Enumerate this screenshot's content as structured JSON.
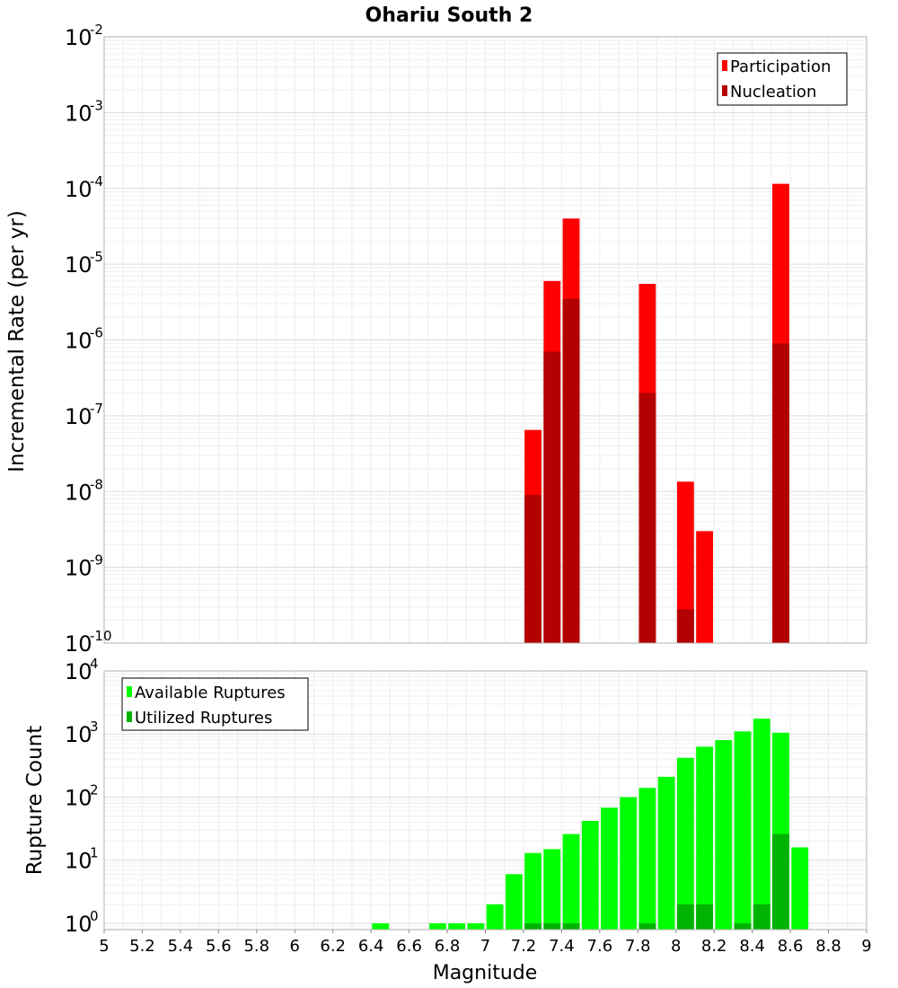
{
  "chart_data": [
    {
      "type": "bar",
      "title": "Ohariu South 2",
      "xlabel": "",
      "ylabel": "Incremental Rate (per yr)",
      "yscale": "log",
      "ylim_exp": [
        -10,
        -2
      ],
      "ytick_base": "10",
      "ytick_exps": [
        "-10",
        "-9",
        "-8",
        "-7",
        "-6",
        "-5",
        "-4",
        "-3",
        "-2"
      ],
      "xlim": [
        5,
        9
      ],
      "bin_width": 0.1,
      "legend_position": "top-right",
      "series": [
        {
          "name": "Participation",
          "color": "#ff0000",
          "points": [
            {
              "x": 7.25,
              "y": 6.5e-08
            },
            {
              "x": 7.35,
              "y": 6e-06
            },
            {
              "x": 7.45,
              "y": 4e-05
            },
            {
              "x": 7.85,
              "y": 5.5e-06
            },
            {
              "x": 8.05,
              "y": 1.35e-08
            },
            {
              "x": 8.15,
              "y": 3e-09
            },
            {
              "x": 8.55,
              "y": 0.000115
            }
          ]
        },
        {
          "name": "Nucleation",
          "color": "#b30000",
          "points": [
            {
              "x": 7.25,
              "y": 9e-09
            },
            {
              "x": 7.35,
              "y": 7e-07
            },
            {
              "x": 7.45,
              "y": 3.5e-06
            },
            {
              "x": 7.85,
              "y": 2e-07
            },
            {
              "x": 8.05,
              "y": 2.8e-10
            },
            {
              "x": 8.55,
              "y": 9e-07
            }
          ]
        }
      ]
    },
    {
      "type": "bar",
      "title": "",
      "xlabel": "Magnitude",
      "ylabel": "Rupture Count",
      "yscale": "log",
      "ylim_exp": [
        -0.1,
        4
      ],
      "ytick_base": "10",
      "ytick_exps": [
        "0",
        "1",
        "2",
        "3",
        "4"
      ],
      "xlim": [
        5,
        9
      ],
      "bin_width": 0.1,
      "xticks": [
        "5",
        "5.2",
        "5.4",
        "5.6",
        "5.8",
        "6",
        "6.2",
        "6.4",
        "6.6",
        "6.8",
        "7",
        "7.2",
        "7.4",
        "7.6",
        "7.8",
        "8",
        "8.2",
        "8.4",
        "8.6",
        "8.8",
        "9"
      ],
      "legend_position": "top-left",
      "series": [
        {
          "name": "Available Ruptures",
          "color": "#00ff00",
          "points": [
            {
              "x": 6.45,
              "y": 1
            },
            {
              "x": 6.75,
              "y": 1
            },
            {
              "x": 6.85,
              "y": 1
            },
            {
              "x": 6.95,
              "y": 1
            },
            {
              "x": 7.05,
              "y": 2
            },
            {
              "x": 7.15,
              "y": 6
            },
            {
              "x": 7.25,
              "y": 13
            },
            {
              "x": 7.35,
              "y": 15
            },
            {
              "x": 7.45,
              "y": 26
            },
            {
              "x": 7.55,
              "y": 42
            },
            {
              "x": 7.65,
              "y": 68
            },
            {
              "x": 7.75,
              "y": 100
            },
            {
              "x": 7.85,
              "y": 140
            },
            {
              "x": 7.95,
              "y": 210
            },
            {
              "x": 8.05,
              "y": 420
            },
            {
              "x": 8.15,
              "y": 630
            },
            {
              "x": 8.25,
              "y": 800
            },
            {
              "x": 8.35,
              "y": 1100
            },
            {
              "x": 8.45,
              "y": 1750
            },
            {
              "x": 8.55,
              "y": 1050
            },
            {
              "x": 8.65,
              "y": 16
            }
          ]
        },
        {
          "name": "Utilized Ruptures",
          "color": "#00b300",
          "points": [
            {
              "x": 7.25,
              "y": 1
            },
            {
              "x": 7.35,
              "y": 1
            },
            {
              "x": 7.45,
              "y": 1
            },
            {
              "x": 7.85,
              "y": 1
            },
            {
              "x": 8.05,
              "y": 2
            },
            {
              "x": 8.15,
              "y": 2
            },
            {
              "x": 8.35,
              "y": 1
            },
            {
              "x": 8.45,
              "y": 2
            },
            {
              "x": 8.55,
              "y": 26
            }
          ]
        }
      ]
    }
  ]
}
